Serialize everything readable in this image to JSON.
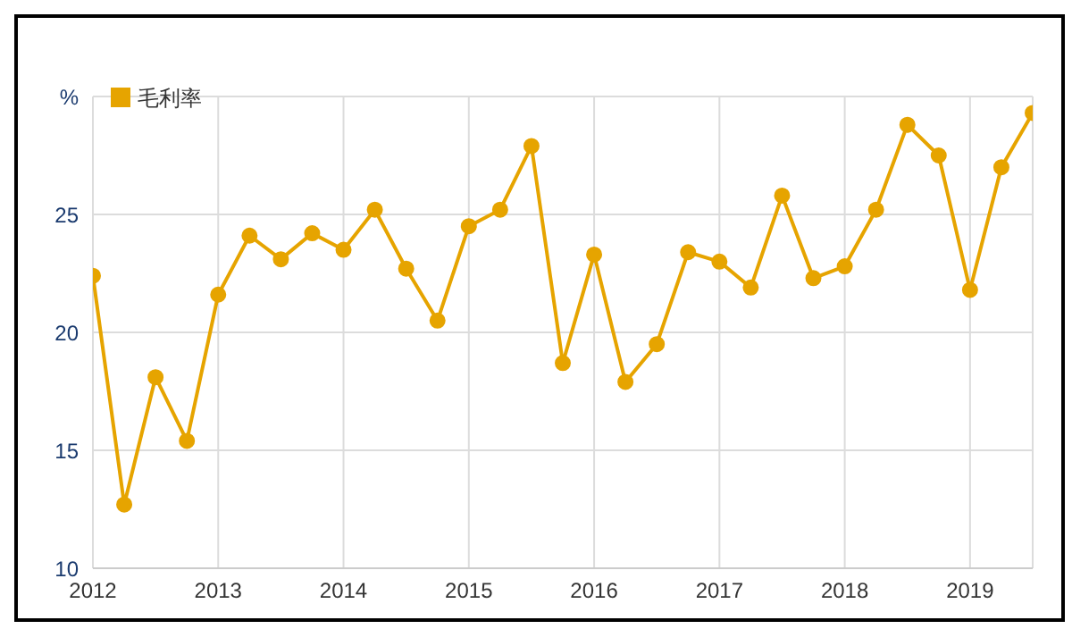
{
  "chart_data": {
    "type": "line",
    "x": [
      2012,
      2012.25,
      2012.5,
      2012.75,
      2013,
      2013.25,
      2013.5,
      2013.75,
      2014,
      2014.25,
      2014.5,
      2014.75,
      2015,
      2015.25,
      2015.5,
      2015.75,
      2016,
      2016.25,
      2016.5,
      2016.75,
      2017,
      2017.25,
      2017.5,
      2017.75,
      2018,
      2018.25,
      2018.5,
      2018.75,
      2019,
      2019.25,
      2019.5
    ],
    "series": [
      {
        "name": "毛利率",
        "color": "#e6a400",
        "values": [
          22.4,
          12.7,
          18.1,
          15.4,
          21.6,
          24.1,
          23.1,
          24.2,
          23.5,
          25.2,
          22.7,
          20.5,
          24.5,
          25.2,
          27.9,
          18.7,
          23.3,
          17.9,
          19.5,
          23.4,
          23.0,
          21.9,
          25.8,
          22.3,
          22.8,
          25.2,
          28.8,
          27.5,
          21.8,
          27.0,
          29.3
        ]
      }
    ],
    "xlim": [
      2012,
      2019.5
    ],
    "xticks": [
      2012,
      2013,
      2014,
      2015,
      2016,
      2017,
      2018,
      2019
    ],
    "ylim": [
      10,
      30
    ],
    "yticks": [
      10,
      15,
      20,
      25,
      {
        "value": 30,
        "label": "%"
      }
    ],
    "grid": true,
    "legend": "top left",
    "marker": "circle",
    "line_style": "solid"
  }
}
